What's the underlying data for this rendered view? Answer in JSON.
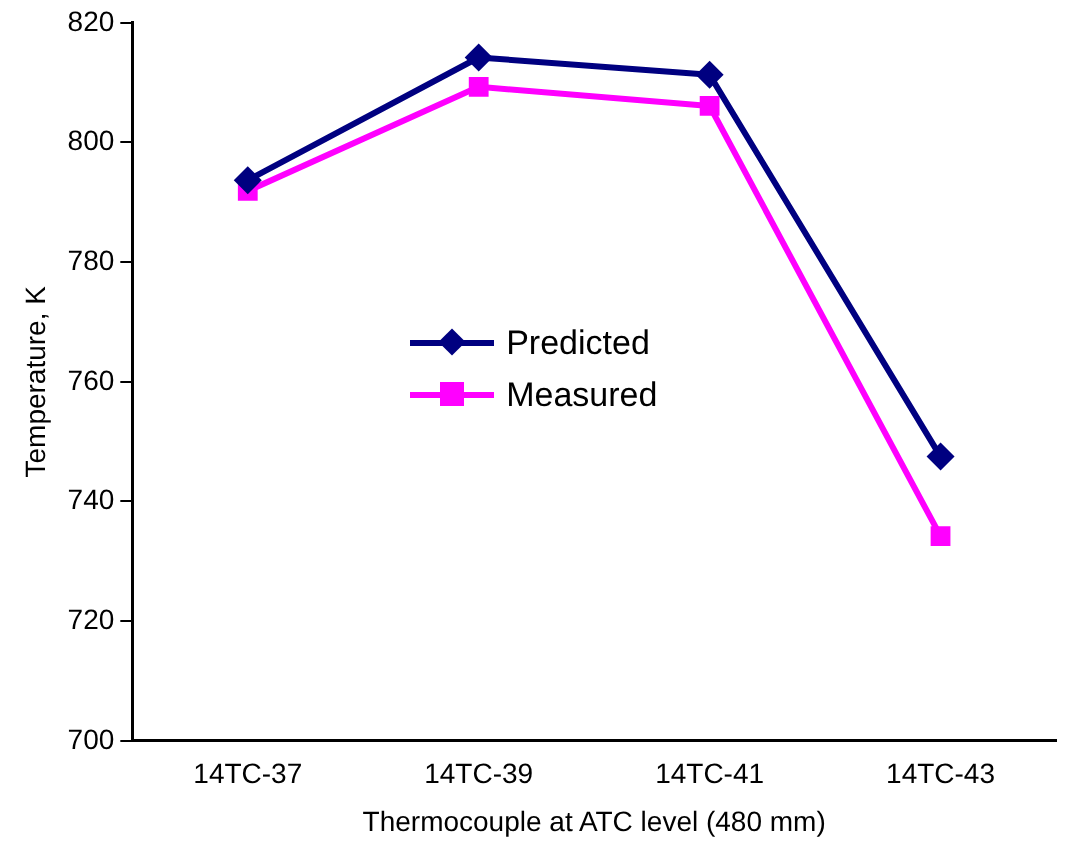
{
  "chart_data": {
    "type": "line",
    "xlabel": "Thermocouple at ATC level (480 mm)",
    "ylabel": "Temperature, K",
    "categories": [
      "14TC-37",
      "14TC-39",
      "14TC-41",
      "14TC-43"
    ],
    "series": [
      {
        "name": "Predicted",
        "color": "#000080",
        "marker": "diamond",
        "values": [
          793.7,
          814.2,
          811.3,
          747.5
        ]
      },
      {
        "name": "Measured",
        "color": "#ff00ff",
        "marker": "square",
        "values": [
          791.9,
          809.3,
          806.1,
          734.2
        ]
      }
    ],
    "ylim": [
      700,
      820
    ],
    "yticks": [
      700,
      720,
      740,
      760,
      780,
      800,
      820
    ],
    "grid": false,
    "legend": "center",
    "line_style": "solid"
  }
}
